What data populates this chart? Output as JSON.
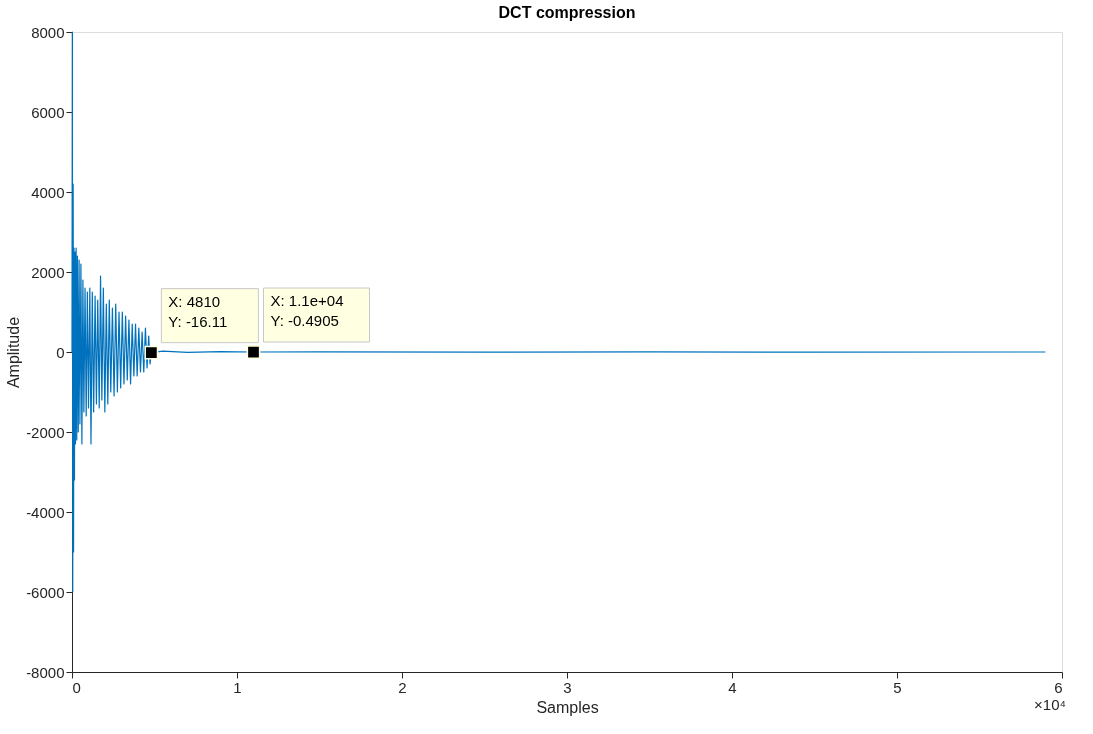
{
  "chart_data": {
    "type": "line",
    "title": "DCT compression",
    "xlabel": "Samples",
    "ylabel": "Amplitude",
    "series": [
      {
        "color": "#0072bd",
        "x": [
          0,
          0.002,
          0.0045,
          0.007,
          0.0095,
          0.012,
          0.015,
          0.018,
          0.021,
          0.025,
          0.029,
          0.033,
          0.038,
          0.043,
          0.048,
          0.054,
          0.06,
          0.066,
          0.072,
          0.079,
          0.086,
          0.093,
          0.1,
          0.108,
          0.115,
          0.123,
          0.131,
          0.14,
          0.148,
          0.156,
          0.165,
          0.173,
          0.181,
          0.19,
          0.199,
          0.208,
          0.217,
          0.226,
          0.235,
          0.245,
          0.255,
          0.265,
          0.275,
          0.285,
          0.295,
          0.305,
          0.315,
          0.325,
          0.335,
          0.345,
          0.355,
          0.365,
          0.375,
          0.385,
          0.395,
          0.405,
          0.415,
          0.425,
          0.435,
          0.445,
          0.455,
          0.465,
          0.473,
          0.481,
          0.55,
          0.7,
          0.9,
          1.1,
          1.5,
          2.5,
          3.5,
          4.5,
          5.9
        ],
        "values": [
          0,
          8000,
          -6000,
          4200,
          -5000,
          2600,
          -3200,
          2500,
          -2300,
          2600,
          -2200,
          2400,
          -2000,
          2300,
          -1800,
          2200,
          -2300,
          1800,
          -1500,
          1600,
          -1600,
          1500,
          -1400,
          1600,
          -2300,
          1500,
          -1500,
          1400,
          -1300,
          1300,
          -1400,
          1900,
          -1200,
          1600,
          -1500,
          1200,
          -1300,
          1300,
          -1000,
          1100,
          -1100,
          1200,
          -1000,
          1000,
          -900,
          1000,
          -800,
          900,
          -700,
          800,
          -800,
          700,
          -600,
          700,
          -600,
          600,
          -500,
          500,
          -500,
          600,
          -400,
          400,
          -300,
          -16.11,
          20,
          -10,
          8,
          -0.4905,
          5,
          -3,
          2,
          -2,
          0
        ]
      },
      {
        "type": "scatter",
        "marker": "square",
        "color": "#000000",
        "x": [
          0.481,
          1.1
        ],
        "values": [
          -16.11,
          -0.4905
        ]
      }
    ],
    "xlim": [
      0,
      6
    ],
    "xticks": [
      0,
      1,
      2,
      3,
      4,
      5,
      6
    ],
    "ylim": [
      -8000,
      8000
    ],
    "yticks": [
      -8000,
      -6000,
      -4000,
      -2000,
      0,
      2000,
      4000,
      6000,
      8000
    ],
    "grid": false,
    "annotations": [
      {
        "text": "X: 4810\nY: -16.11",
        "x": 0.481,
        "y": -16.11
      },
      {
        "text": "X: 1.1e+04\nY: -0.4905",
        "x": 1.1,
        "y": -0.4905
      },
      "×10⁴"
    ]
  }
}
